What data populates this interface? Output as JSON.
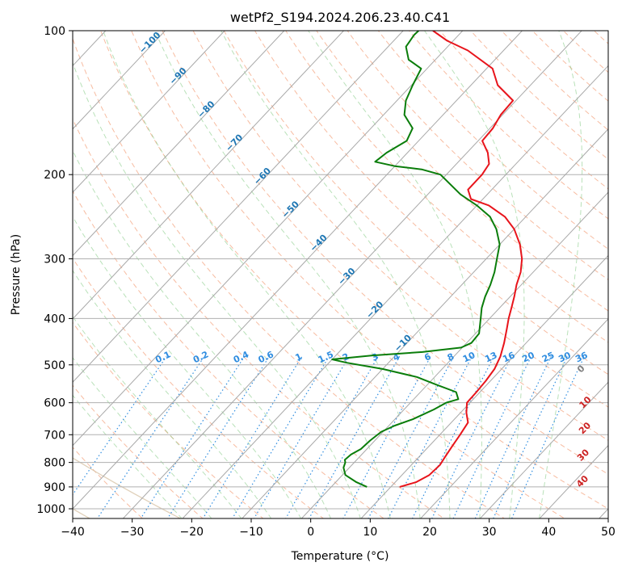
{
  "chart_data": {
    "type": "line",
    "title": "wetPf2_S194.2024.206.23.40.C41",
    "xlabel": "Temperature (°C)",
    "ylabel": "Pressure (hPa)",
    "xlim": [
      -40,
      50
    ],
    "ylim": [
      1050,
      100
    ],
    "y_scale": "log",
    "skew": "skew-T log-p",
    "grid": true,
    "x_ticks": [
      -40,
      -30,
      -20,
      -10,
      0,
      10,
      20,
      30,
      40,
      50
    ],
    "x_tick_labels": [
      "−40",
      "−30",
      "−20",
      "−10",
      "0",
      "10",
      "20",
      "30",
      "40",
      "50"
    ],
    "y_ticks": [
      1000,
      900,
      800,
      700,
      600,
      500,
      400,
      300,
      200,
      100
    ],
    "y_tick_labels": [
      "1000",
      "900",
      "800",
      "700",
      "600",
      "500",
      "400",
      "300",
      "200",
      "100"
    ],
    "series": [
      {
        "kind": "temperature",
        "color": "#e8141b",
        "points": [
          [
            900,
            11.5
          ],
          [
            880,
            13.5
          ],
          [
            850,
            14.6
          ],
          [
            810,
            14.8
          ],
          [
            780,
            14.4
          ],
          [
            740,
            13.9
          ],
          [
            700,
            13.4
          ],
          [
            660,
            12.8
          ],
          [
            630,
            11.0
          ],
          [
            600,
            9.5
          ],
          [
            570,
            9.4
          ],
          [
            540,
            9.2
          ],
          [
            510,
            8.8
          ],
          [
            480,
            7.8
          ],
          [
            450,
            6.3
          ],
          [
            420,
            4.5
          ],
          [
            400,
            3.2
          ],
          [
            380,
            2.0
          ],
          [
            360,
            0.7
          ],
          [
            340,
            -0.8
          ],
          [
            320,
            -2.1
          ],
          [
            300,
            -4.0
          ],
          [
            280,
            -6.6
          ],
          [
            260,
            -10.0
          ],
          [
            245,
            -13.5
          ],
          [
            232,
            -18.0
          ],
          [
            225,
            -22.0
          ],
          [
            215,
            -24.0
          ],
          [
            200,
            -24.0
          ],
          [
            190,
            -24.5
          ],
          [
            180,
            -26.5
          ],
          [
            170,
            -29.3
          ],
          [
            160,
            -29.5
          ],
          [
            150,
            -30.3
          ],
          [
            140,
            -30.5
          ],
          [
            130,
            -35.5
          ],
          [
            120,
            -39.0
          ],
          [
            110,
            -46.0
          ],
          [
            105,
            -51.0
          ],
          [
            100,
            -55.0
          ]
        ]
      },
      {
        "kind": "dewpoint",
        "color": "#0a7d0a",
        "points": [
          [
            900,
            6.0
          ],
          [
            880,
            3.5
          ],
          [
            850,
            0.5
          ],
          [
            820,
            -1.0
          ],
          [
            800,
            -1.5
          ],
          [
            790,
            -2.0
          ],
          [
            770,
            -1.8
          ],
          [
            750,
            -1.0
          ],
          [
            720,
            -0.8
          ],
          [
            690,
            -0.3
          ],
          [
            670,
            1.0
          ],
          [
            650,
            3.0
          ],
          [
            620,
            5.0
          ],
          [
            600,
            6.0
          ],
          [
            590,
            7.5
          ],
          [
            570,
            6.0
          ],
          [
            550,
            1.5
          ],
          [
            530,
            -3.0
          ],
          [
            510,
            -10.0
          ],
          [
            495,
            -17.0
          ],
          [
            487,
            -20.0
          ],
          [
            478,
            -14.0
          ],
          [
            470,
            -6.0
          ],
          [
            460,
            -0.2
          ],
          [
            450,
            0.8
          ],
          [
            430,
            0.6
          ],
          [
            400,
            -1.5
          ],
          [
            380,
            -3.0
          ],
          [
            360,
            -4.2
          ],
          [
            340,
            -5.2
          ],
          [
            320,
            -6.5
          ],
          [
            300,
            -8.2
          ],
          [
            280,
            -10.0
          ],
          [
            260,
            -13.0
          ],
          [
            245,
            -16.0
          ],
          [
            232,
            -20.0
          ],
          [
            220,
            -24.5
          ],
          [
            200,
            -31.0
          ],
          [
            195,
            -35.0
          ],
          [
            192,
            -40.0
          ],
          [
            188,
            -44.0
          ],
          [
            180,
            -43.5
          ],
          [
            170,
            -42.0
          ],
          [
            160,
            -43.0
          ],
          [
            150,
            -46.5
          ],
          [
            140,
            -48.5
          ],
          [
            130,
            -49.8
          ],
          [
            120,
            -51.0
          ],
          [
            115,
            -54.5
          ],
          [
            108,
            -57.0
          ],
          [
            102,
            -57.5
          ],
          [
            100,
            -57.4
          ]
        ]
      }
    ],
    "isotherm_labels": [
      "−100",
      "−90",
      "−80",
      "−70",
      "−60",
      "−50",
      "−40",
      "−30",
      "−20",
      "−10"
    ],
    "mixing_ratio_labels": [
      "0.1",
      "0.2",
      "0.4",
      "0.6",
      "1",
      "1.5",
      "2",
      "3",
      "4",
      "6",
      "8",
      "10",
      "13",
      "16",
      "20",
      "25",
      "30",
      "36"
    ],
    "dry_adiabat_labels": [
      "0",
      "10",
      "20",
      "30",
      "40"
    ]
  }
}
